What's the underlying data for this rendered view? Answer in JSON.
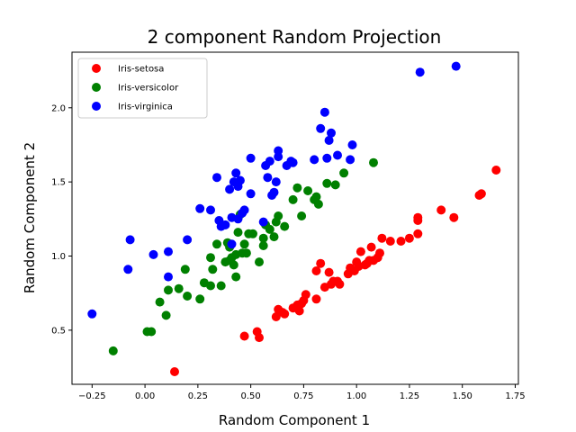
{
  "chart_data": {
    "type": "scatter",
    "title": "2 component Random Projection",
    "xlabel": "Random Component 1",
    "ylabel": "Random Component 2",
    "xlim": [
      -0.345,
      1.765
    ],
    "ylim": [
      0.135,
      2.375
    ],
    "xticks": [
      -0.25,
      0.0,
      0.25,
      0.5,
      0.75,
      1.0,
      1.25,
      1.5,
      1.75
    ],
    "xtick_labels": [
      "−0.25",
      "0.00",
      "0.25",
      "0.50",
      "0.75",
      "1.00",
      "1.25",
      "1.50",
      "1.75"
    ],
    "yticks": [
      0.5,
      1.0,
      1.5,
      2.0
    ],
    "ytick_labels": [
      "0.5",
      "1.0",
      "1.5",
      "2.0"
    ],
    "grid": false,
    "legend_position": "top-left",
    "series": [
      {
        "name": "Iris-setosa",
        "color": "#ff0000",
        "points": [
          [
            0.14,
            0.22
          ],
          [
            0.47,
            0.46
          ],
          [
            0.53,
            0.49
          ],
          [
            0.54,
            0.45
          ],
          [
            0.62,
            0.59
          ],
          [
            0.63,
            0.64
          ],
          [
            0.65,
            0.62
          ],
          [
            0.66,
            0.61
          ],
          [
            0.7,
            0.65
          ],
          [
            0.72,
            0.67
          ],
          [
            0.73,
            0.63
          ],
          [
            0.74,
            0.68
          ],
          [
            0.75,
            0.7
          ],
          [
            0.76,
            0.74
          ],
          [
            0.81,
            0.71
          ],
          [
            0.81,
            0.9
          ],
          [
            0.83,
            0.95
          ],
          [
            0.85,
            0.79
          ],
          [
            0.87,
            0.89
          ],
          [
            0.88,
            0.81
          ],
          [
            0.89,
            0.83
          ],
          [
            0.91,
            0.83
          ],
          [
            0.92,
            0.81
          ],
          [
            0.96,
            0.88
          ],
          [
            0.97,
            0.92
          ],
          [
            0.99,
            0.9
          ],
          [
            1.0,
            0.96
          ],
          [
            1.01,
            0.93
          ],
          [
            1.02,
            1.03
          ],
          [
            1.04,
            0.94
          ],
          [
            1.05,
            0.95
          ],
          [
            1.06,
            0.97
          ],
          [
            1.07,
            1.06
          ],
          [
            1.08,
            0.97
          ],
          [
            1.1,
            0.99
          ],
          [
            1.11,
            1.02
          ],
          [
            1.12,
            1.12
          ],
          [
            1.16,
            1.1
          ],
          [
            1.21,
            1.1
          ],
          [
            1.25,
            1.12
          ],
          [
            1.29,
            1.15
          ],
          [
            1.29,
            1.24
          ],
          [
            1.29,
            1.26
          ],
          [
            1.4,
            1.31
          ],
          [
            1.46,
            1.26
          ],
          [
            1.58,
            1.41
          ],
          [
            1.59,
            1.42
          ],
          [
            1.66,
            1.58
          ]
        ]
      },
      {
        "name": "Iris-versicolor",
        "color": "#008000",
        "points": [
          [
            -0.15,
            0.36
          ],
          [
            0.01,
            0.49
          ],
          [
            0.03,
            0.49
          ],
          [
            0.07,
            0.69
          ],
          [
            0.1,
            0.6
          ],
          [
            0.11,
            0.77
          ],
          [
            0.16,
            0.78
          ],
          [
            0.19,
            0.91
          ],
          [
            0.2,
            0.73
          ],
          [
            0.26,
            0.71
          ],
          [
            0.28,
            0.82
          ],
          [
            0.31,
            0.8
          ],
          [
            0.31,
            0.99
          ],
          [
            0.32,
            0.91
          ],
          [
            0.34,
            1.08
          ],
          [
            0.36,
            0.8
          ],
          [
            0.38,
            0.96
          ],
          [
            0.39,
            1.09
          ],
          [
            0.4,
            0.97
          ],
          [
            0.4,
            1.06
          ],
          [
            0.41,
            0.99
          ],
          [
            0.42,
            0.94
          ],
          [
            0.43,
            0.86
          ],
          [
            0.43,
            1.01
          ],
          [
            0.44,
            1.16
          ],
          [
            0.45,
            1.28
          ],
          [
            0.46,
            1.02
          ],
          [
            0.47,
            1.08
          ],
          [
            0.48,
            1.02
          ],
          [
            0.49,
            1.15
          ],
          [
            0.51,
            1.15
          ],
          [
            0.54,
            0.96
          ],
          [
            0.56,
            1.07
          ],
          [
            0.56,
            1.12
          ],
          [
            0.57,
            1.21
          ],
          [
            0.59,
            1.18
          ],
          [
            0.61,
            1.13
          ],
          [
            0.62,
            1.23
          ],
          [
            0.63,
            1.27
          ],
          [
            0.66,
            1.2
          ],
          [
            0.7,
            1.38
          ],
          [
            0.72,
            1.46
          ],
          [
            0.74,
            1.27
          ],
          [
            0.77,
            1.44
          ],
          [
            0.8,
            1.38
          ],
          [
            0.81,
            1.4
          ],
          [
            0.82,
            1.35
          ],
          [
            0.86,
            1.49
          ],
          [
            0.9,
            1.48
          ],
          [
            0.94,
            1.56
          ],
          [
            1.08,
            1.63
          ]
        ]
      },
      {
        "name": "Iris-virginica",
        "color": "#0000ff",
        "points": [
          [
            -0.25,
            0.61
          ],
          [
            -0.08,
            0.91
          ],
          [
            -0.07,
            1.11
          ],
          [
            0.04,
            1.01
          ],
          [
            0.11,
            0.86
          ],
          [
            0.11,
            1.03
          ],
          [
            0.2,
            1.11
          ],
          [
            0.26,
            1.32
          ],
          [
            0.31,
            1.31
          ],
          [
            0.34,
            1.53
          ],
          [
            0.35,
            1.24
          ],
          [
            0.36,
            1.2
          ],
          [
            0.38,
            1.21
          ],
          [
            0.4,
            1.45
          ],
          [
            0.41,
            1.26
          ],
          [
            0.41,
            1.08
          ],
          [
            0.42,
            1.5
          ],
          [
            0.43,
            1.56
          ],
          [
            0.44,
            1.25
          ],
          [
            0.44,
            1.47
          ],
          [
            0.45,
            1.51
          ],
          [
            0.46,
            1.29
          ],
          [
            0.47,
            1.31
          ],
          [
            0.5,
            1.42
          ],
          [
            0.5,
            1.66
          ],
          [
            0.56,
            1.23
          ],
          [
            0.57,
            1.61
          ],
          [
            0.58,
            1.53
          ],
          [
            0.59,
            1.64
          ],
          [
            0.6,
            1.41
          ],
          [
            0.61,
            1.43
          ],
          [
            0.62,
            1.5
          ],
          [
            0.63,
            1.67
          ],
          [
            0.63,
            1.71
          ],
          [
            0.67,
            1.61
          ],
          [
            0.69,
            1.64
          ],
          [
            0.7,
            1.63
          ],
          [
            0.8,
            1.65
          ],
          [
            0.83,
            1.86
          ],
          [
            0.85,
            1.97
          ],
          [
            0.86,
            1.66
          ],
          [
            0.87,
            1.78
          ],
          [
            0.88,
            1.83
          ],
          [
            0.91,
            1.68
          ],
          [
            0.97,
            1.65
          ],
          [
            0.98,
            1.75
          ],
          [
            1.3,
            2.24
          ],
          [
            1.47,
            2.28
          ]
        ]
      }
    ]
  }
}
